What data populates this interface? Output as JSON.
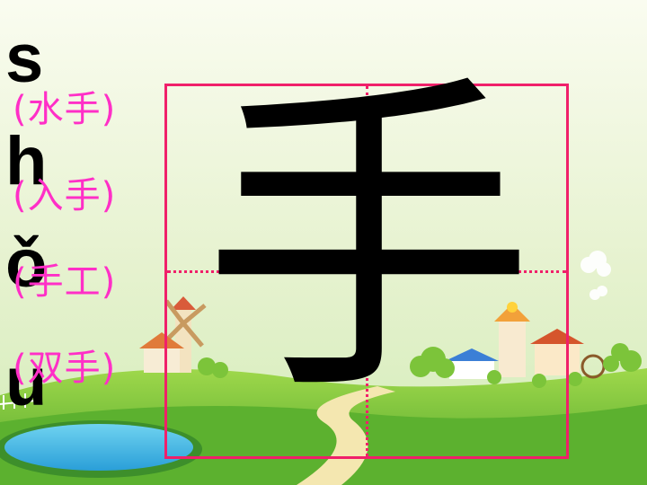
{
  "character": "手",
  "pinyin_letters": [
    "s",
    "h",
    "ǒ",
    "u"
  ],
  "words": [
    "(水手)",
    "(入手)",
    "(手工)",
    "(双手)"
  ],
  "colors": {
    "sky_top": "#ffffff",
    "sky_bottom": "#d7efc0",
    "grass": "#6fc23a",
    "grid_line": "#f0206a",
    "word_text": "#ff2fc7",
    "pinyin_text": "#000000"
  }
}
